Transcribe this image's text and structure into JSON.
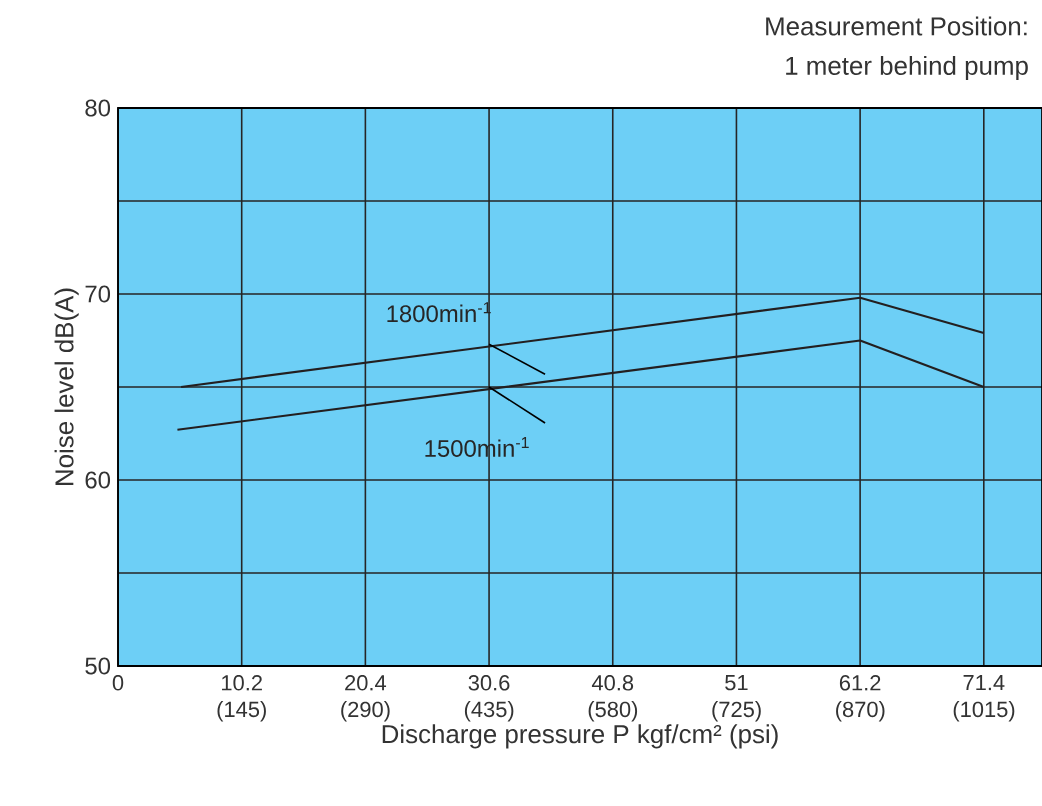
{
  "chart_data": {
    "type": "line",
    "xlabel": "Discharge pressure P kgf/cm² (psi)",
    "ylabel": "Noise level  dB(A)",
    "annotations": [
      "Measurement Position:",
      "1 meter behind pump",
      {
        "text": "1800min$^{-1}$",
        "x": 30.6,
        "y": 67.3
      },
      {
        "text": "1500min$^{-1}$",
        "x": 30.6,
        "y": 65.0
      }
    ],
    "series": [
      {
        "color": "#231f20",
        "x": [
          5.2,
          61.2,
          71.4
        ],
        "values": [
          65.0,
          69.8,
          67.9
        ]
      },
      {
        "color": "#231f20",
        "x": [
          4.9,
          61.2,
          71.4
        ],
        "values": [
          62.7,
          67.5,
          65.0
        ]
      }
    ],
    "xlim": [
      0,
      76.2
    ],
    "xticks": [
      0,
      10.2,
      20.4,
      30.6,
      40.8,
      51,
      61.2,
      71.4
    ],
    "x2lim": [
      0,
      1083
    ],
    "x2ticks": [
      {
        "value": 145,
        "label": "(145)"
      },
      {
        "value": 290,
        "label": "(290)"
      },
      {
        "value": 435,
        "label": "(435)"
      },
      {
        "value": 580,
        "label": "(580)"
      },
      {
        "value": 725,
        "label": "(725)"
      },
      {
        "value": 870,
        "label": "(870)"
      },
      {
        "value": 1015,
        "label": "(1015)"
      }
    ],
    "ylim": [
      50,
      80
    ],
    "yticks": [
      50,
      {
        "value": 55,
        "label": null
      },
      60,
      {
        "value": 65,
        "label": null
      },
      70,
      {
        "value": 75,
        "label": null
      },
      80
    ],
    "grid": true,
    "marker": "none",
    "line_style": "solid"
  }
}
